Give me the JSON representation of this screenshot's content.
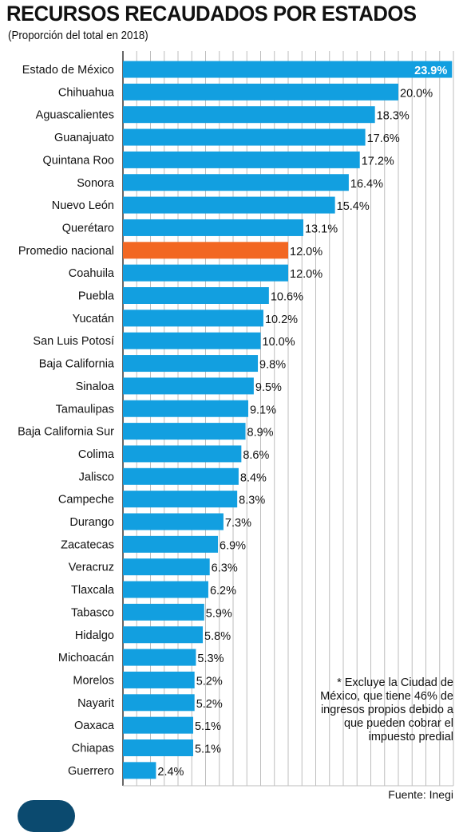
{
  "title": "RECURSOS RECAUDADOS POR ESTADOS",
  "subtitle": "(Proporción del total en 2018)",
  "note": "* Excluye la Ciudad de México, que tiene 46% de ingresos propios debido a que pueden cobrar el impuesto predial",
  "source": "Fuente: Inegi",
  "colors": {
    "bar": "#129fe0",
    "highlight": "#f26722",
    "grid": "#bdbdbd",
    "axis": "#333333"
  },
  "chart_data": {
    "type": "bar",
    "orientation": "horizontal",
    "title": "RECURSOS RECAUDADOS POR ESTADOS",
    "subtitle": "(Proporción del total en 2018)",
    "unit": "%",
    "xlim": [
      0,
      24
    ],
    "grid": true,
    "highlight_category": "Promedio nacional",
    "categories": [
      "Estado de México",
      "Chihuahua",
      "Aguascalientes",
      "Guanajuato",
      "Quintana Roo",
      "Sonora",
      "Nuevo León",
      "Querétaro",
      "Promedio nacional",
      "Coahuila",
      "Puebla",
      "Yucatán",
      "San Luis Potosí",
      "Baja California",
      "Sinaloa",
      "Tamaulipas",
      "Baja California Sur",
      "Colima",
      "Jalisco",
      "Campeche",
      "Durango",
      "Zacatecas",
      "Veracruz",
      "Tlaxcala",
      "Tabasco",
      "Hidalgo",
      "Michoacán",
      "Morelos",
      "Nayarit",
      "Oaxaca",
      "Chiapas",
      "Guerrero"
    ],
    "values": [
      23.9,
      20.0,
      18.3,
      17.6,
      17.2,
      16.4,
      15.4,
      13.1,
      12.0,
      12.0,
      10.6,
      10.2,
      10.0,
      9.8,
      9.5,
      9.1,
      8.9,
      8.6,
      8.4,
      8.3,
      7.3,
      6.9,
      6.3,
      6.2,
      5.9,
      5.8,
      5.3,
      5.2,
      5.2,
      5.1,
      5.1,
      2.4
    ],
    "labels": [
      "23.9%",
      "20.0%",
      "18.3%",
      "17.6%",
      "17.2%",
      "16.4%",
      "15.4%",
      "13.1%",
      "12.0%",
      "12.0%",
      "10.6%",
      "10.2%",
      "10.0%",
      "9.8%",
      "9.5%",
      "9.1%",
      "8.9%",
      "8.6%",
      "8.4%",
      "8.3%",
      "7.3%",
      "6.9%",
      "6.3%",
      "6.2%",
      "5.9%",
      "5.8%",
      "5.3%",
      "5.2%",
      "5.2%",
      "5.1%",
      "5.1%",
      "2.4%"
    ]
  }
}
